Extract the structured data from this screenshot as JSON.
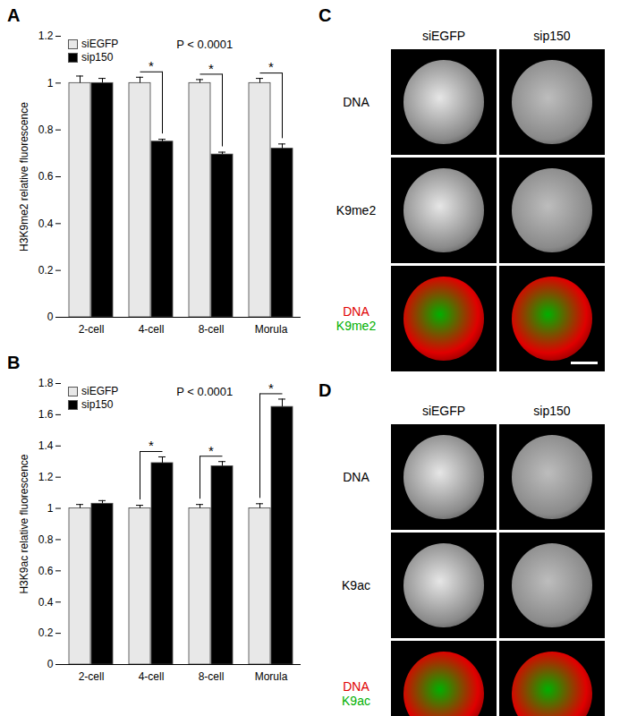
{
  "chart_data": [
    {
      "label": "A",
      "type": "bar",
      "categories": [
        "2-cell",
        "4-cell",
        "8-cell",
        "Morula"
      ],
      "series": [
        {
          "name": "siEGFP",
          "color": "#e8e8e8",
          "values": [
            1,
            1,
            1,
            1
          ],
          "errors": [
            0.03,
            0.025,
            0.015,
            0.02
          ]
        },
        {
          "name": "sip150",
          "color": "#000000",
          "values": [
            1,
            0.75,
            0.695,
            0.72
          ],
          "errors": [
            0.02,
            0.01,
            0.01,
            0.02
          ]
        }
      ],
      "ylabel": "H3K9me2 relative fluorescence",
      "ylim": [
        0,
        1.2
      ],
      "yticks": [
        0,
        0.2,
        0.4,
        0.6,
        0.8,
        1,
        1.2
      ],
      "legend": "top-left",
      "annotation": "P < 0.0001",
      "significance": {
        "categories": [
          "4-cell",
          "8-cell",
          "Morula"
        ],
        "text": "*"
      }
    },
    {
      "label": "B",
      "type": "bar",
      "categories": [
        "2-cell",
        "4-cell",
        "8-cell",
        "Morula"
      ],
      "series": [
        {
          "name": "siEGFP",
          "color": "#e8e8e8",
          "values": [
            1,
            1,
            1,
            1
          ],
          "errors": [
            0.025,
            0.02,
            0.025,
            0.03
          ]
        },
        {
          "name": "sip150",
          "color": "#000000",
          "values": [
            1.03,
            1.29,
            1.27,
            1.65
          ],
          "errors": [
            0.02,
            0.04,
            0.03,
            0.05
          ]
        }
      ],
      "ylabel": "H3K9ac relative fluorescence",
      "ylim": [
        0,
        1.8
      ],
      "yticks": [
        0,
        0.2,
        0.4,
        0.6,
        0.8,
        1,
        1.2,
        1.4,
        1.6,
        1.8
      ],
      "legend": "top-left",
      "annotation": "P < 0.0001",
      "significance": {
        "categories": [
          "4-cell",
          "8-cell",
          "Morula"
        ],
        "text": "*"
      }
    }
  ],
  "image_panels": [
    {
      "label": "C",
      "columns": [
        "siEGFP",
        "sip150"
      ],
      "rows": [
        [
          "DNA"
        ],
        [
          "K9me2"
        ],
        [
          "DNA",
          "K9me2"
        ]
      ],
      "colors": [
        "#e00000",
        "#00b000"
      ]
    },
    {
      "label": "D",
      "columns": [
        "siEGFP",
        "sip150"
      ],
      "rows": [
        [
          "DNA"
        ],
        [
          "K9ac"
        ],
        [
          "DNA",
          "K9ac"
        ]
      ],
      "colors": [
        "#e00000",
        "#00b000"
      ]
    }
  ]
}
